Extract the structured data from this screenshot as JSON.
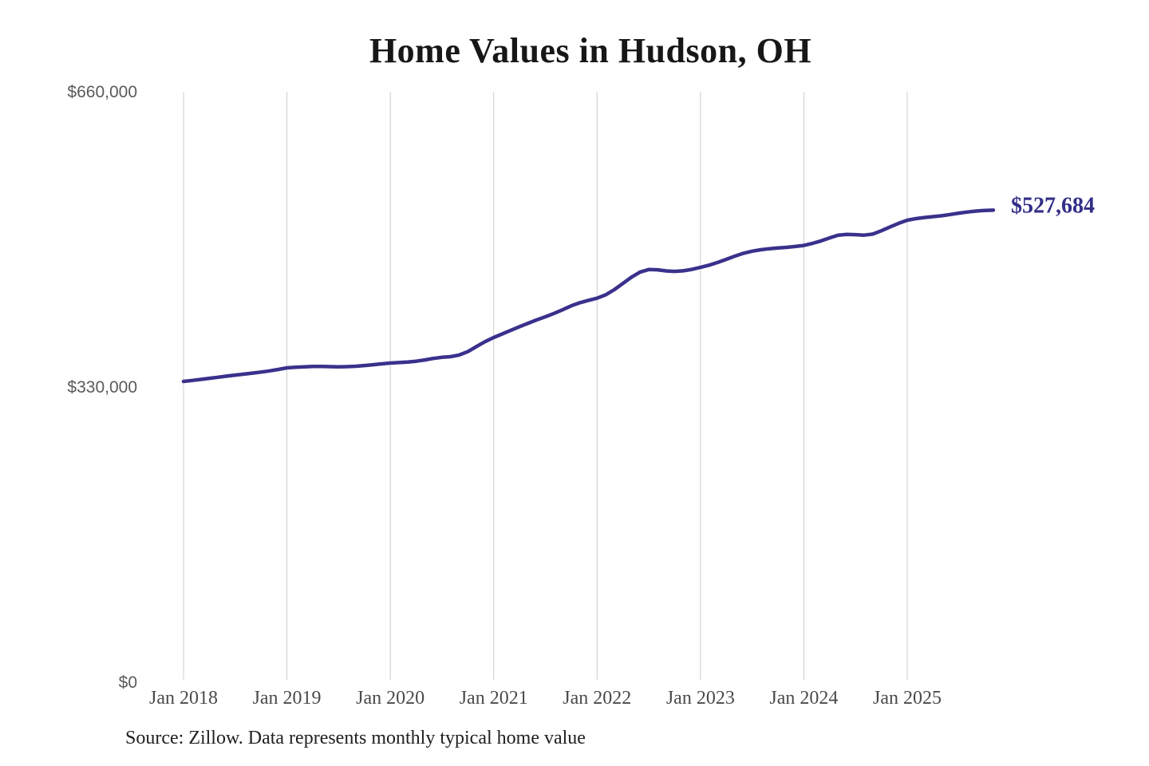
{
  "source_note": "Source: Zillow. Data represents monthly typical home value",
  "colors": {
    "background": "#ffffff",
    "line": "#3a318c",
    "end_label": "#322e88",
    "gridline": "#cccccc",
    "y_label_gray": "#5a5a5b",
    "x_label_gray": "#4a4a4a",
    "title_black": "#171717"
  },
  "chart_data": {
    "type": "line",
    "title": "Home Values in Hudson, OH",
    "subtitle": "",
    "xlabel": "",
    "ylabel": "",
    "ylim": [
      0,
      660000
    ],
    "grid": "vertical-only",
    "legend": "none",
    "y_ticks": [
      {
        "value": 0,
        "label": "$0"
      },
      {
        "value": 330000,
        "label": "$330,000"
      },
      {
        "value": 660000,
        "label": "$660,000"
      }
    ],
    "x_ticks": [
      {
        "index": 0,
        "label": "Jan 2018"
      },
      {
        "index": 12,
        "label": "Jan 2019"
      },
      {
        "index": 24,
        "label": "Jan 2020"
      },
      {
        "index": 36,
        "label": "Jan 2021"
      },
      {
        "index": 48,
        "label": "Jan 2022"
      },
      {
        "index": 60,
        "label": "Jan 2023"
      },
      {
        "index": 72,
        "label": "Jan 2024"
      },
      {
        "index": 84,
        "label": "Jan 2025"
      }
    ],
    "x_months": [
      "2018-01",
      "2018-02",
      "2018-03",
      "2018-04",
      "2018-05",
      "2018-06",
      "2018-07",
      "2018-08",
      "2018-09",
      "2018-10",
      "2018-11",
      "2018-12",
      "2019-01",
      "2019-02",
      "2019-03",
      "2019-04",
      "2019-05",
      "2019-06",
      "2019-07",
      "2019-08",
      "2019-09",
      "2019-10",
      "2019-11",
      "2019-12",
      "2020-01",
      "2020-02",
      "2020-03",
      "2020-04",
      "2020-05",
      "2020-06",
      "2020-07",
      "2020-08",
      "2020-09",
      "2020-10",
      "2020-11",
      "2020-12",
      "2021-01",
      "2021-02",
      "2021-03",
      "2021-04",
      "2021-05",
      "2021-06",
      "2021-07",
      "2021-08",
      "2021-09",
      "2021-10",
      "2021-11",
      "2021-12",
      "2022-01",
      "2022-02",
      "2022-03",
      "2022-04",
      "2022-05",
      "2022-06",
      "2022-07",
      "2022-08",
      "2022-09",
      "2022-10",
      "2022-11",
      "2022-12",
      "2023-01",
      "2023-02",
      "2023-03",
      "2023-04",
      "2023-05",
      "2023-06",
      "2023-07",
      "2023-08",
      "2023-09",
      "2023-10",
      "2023-11",
      "2023-12",
      "2024-01",
      "2024-02",
      "2024-03",
      "2024-04",
      "2024-05",
      "2024-06",
      "2024-07",
      "2024-08",
      "2024-09",
      "2024-10",
      "2024-11",
      "2024-12",
      "2025-01",
      "2025-02",
      "2025-03",
      "2025-04",
      "2025-05",
      "2025-06",
      "2025-07",
      "2025-08",
      "2025-09",
      "2025-10",
      "2025-11"
    ],
    "series": [
      {
        "name": "Typical home value",
        "color": "#3a318c",
        "end_label": "$527,684",
        "final_value": 527684,
        "values": [
          336200,
          337300,
          338500,
          339700,
          340900,
          342100,
          343300,
          344400,
          345500,
          346700,
          348000,
          349600,
          351400,
          352100,
          352600,
          352900,
          352900,
          352700,
          352500,
          352700,
          353200,
          354000,
          354900,
          355900,
          356800,
          357300,
          357900,
          358800,
          360200,
          361900,
          363200,
          363900,
          365800,
          369500,
          375200,
          380700,
          385300,
          389300,
          393400,
          397400,
          401300,
          405000,
          408500,
          412200,
          416300,
          420700,
          424200,
          426900,
          429300,
          433000,
          438800,
          445800,
          452800,
          458500,
          461300,
          461000,
          459800,
          459200,
          459900,
          461500,
          463800,
          466200,
          469200,
          472700,
          476300,
          479500,
          481800,
          483400,
          484600,
          485400,
          486100,
          487100,
          488200,
          490500,
          493300,
          496700,
          499700,
          500600,
          500300,
          499700,
          500900,
          504600,
          508900,
          512900,
          516400,
          518200,
          519400,
          520400,
          521400,
          522800,
          524300,
          525600,
          526700,
          527300,
          527684
        ]
      }
    ]
  }
}
